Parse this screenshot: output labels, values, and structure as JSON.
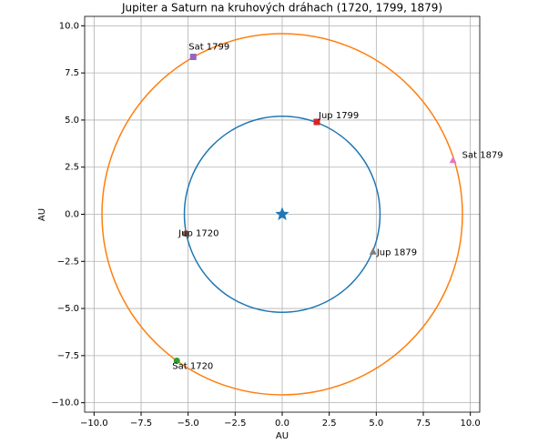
{
  "chart_data": {
    "type": "orbit",
    "title": "Jupiter a Saturn na kruhových dráhach (1720, 1799, 1879)",
    "x_label": "AU",
    "y_label": "AU",
    "xlim": [
      -10.5,
      10.5
    ],
    "ylim": [
      -10.5,
      10.5
    ],
    "xticks": [
      {
        "value": -10,
        "label": "−10.0"
      },
      {
        "value": -7.5,
        "label": "−7.5"
      },
      {
        "value": -5,
        "label": "−5.0"
      },
      {
        "value": -2.5,
        "label": "−2.5"
      },
      {
        "value": 0,
        "label": "0.0"
      },
      {
        "value": 2.5,
        "label": "2.5"
      },
      {
        "value": 5,
        "label": "5.0"
      },
      {
        "value": 7.5,
        "label": "7.5"
      },
      {
        "value": 10,
        "label": "10.0"
      }
    ],
    "yticks": [
      {
        "value": -10,
        "label": "−10.0"
      },
      {
        "value": -7.5,
        "label": "−7.5"
      },
      {
        "value": -5,
        "label": "−5.0"
      },
      {
        "value": -2.5,
        "label": "−2.5"
      },
      {
        "value": 0,
        "label": "0.0"
      },
      {
        "value": 2.5,
        "label": "2.5"
      },
      {
        "value": 5,
        "label": "5.0"
      },
      {
        "value": 7.5,
        "label": "7.5"
      },
      {
        "value": 10,
        "label": "10.0"
      }
    ],
    "grid": true,
    "sun": {
      "x": 0,
      "y": 0,
      "color": "#1f77b4"
    },
    "orbits": [
      {
        "radius": 5.2,
        "color": "#1f77b4"
      },
      {
        "radius": 9.58,
        "color": "#ff7f0e"
      }
    ],
    "points": [
      {
        "label": "Jup 1720",
        "x": -5.12,
        "y": -1.02,
        "color": "#8c564b",
        "marker": "circle"
      },
      {
        "label": "Sat 1720",
        "x": -5.6,
        "y": -7.77,
        "color": "#2ca02c",
        "marker": "circle"
      },
      {
        "label": "Jup 1799",
        "x": 1.84,
        "y": 4.9,
        "color": "#d62728",
        "marker": "square"
      },
      {
        "label": "Sat 1799",
        "x": -4.73,
        "y": 8.35,
        "color": "#9467bd",
        "marker": "square"
      },
      {
        "label": "Jup 1879",
        "x": 4.83,
        "y": -1.99,
        "color": "#7f7f7f",
        "marker": "triangle"
      },
      {
        "label": "Sat 1879",
        "x": 9.08,
        "y": 2.86,
        "color": "#e377c2",
        "marker": "triangle"
      }
    ]
  }
}
